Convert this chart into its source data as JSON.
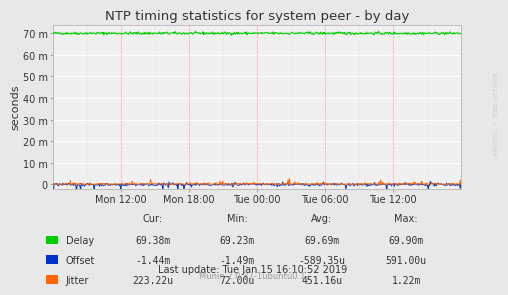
{
  "title": "NTP timing statistics for system peer - by day",
  "ylabel": "seconds",
  "background_color": "#e8e8e8",
  "plot_bg_color": "#f0f0f0",
  "grid_color_major": "#ffffff",
  "grid_color_minor": "#ffcccc",
  "yticks": [
    0,
    10,
    20,
    30,
    40,
    50,
    60,
    70
  ],
  "ytick_labels": [
    "0",
    "10 m",
    "20 m",
    "30 m",
    "40 m",
    "50 m",
    "60 m",
    "70 m"
  ],
  "ylim": [
    -2,
    74
  ],
  "xtick_labels": [
    "Mon 12:00",
    "Mon 18:00",
    "Tue 00:00",
    "Tue 06:00",
    "Tue 12:00"
  ],
  "delay_color": "#00cc00",
  "offset_color": "#0033cc",
  "jitter_color": "#ff6600",
  "watermark": "RRDTOOL / TOBI OETIKER",
  "munin_version": "Munin 2.0.37-1ubuntu0.1",
  "legend_labels": [
    "Delay",
    "Offset",
    "Jitter"
  ],
  "stats": {
    "cur": [
      "69.38m",
      "-1.44m",
      "223.22u"
    ],
    "min": [
      "69.23m",
      "-1.49m",
      "72.00u"
    ],
    "avg": [
      "69.69m",
      "-589.35u",
      "451.16u"
    ],
    "max": [
      "69.90m",
      "591.00u",
      "1.22m"
    ]
  }
}
